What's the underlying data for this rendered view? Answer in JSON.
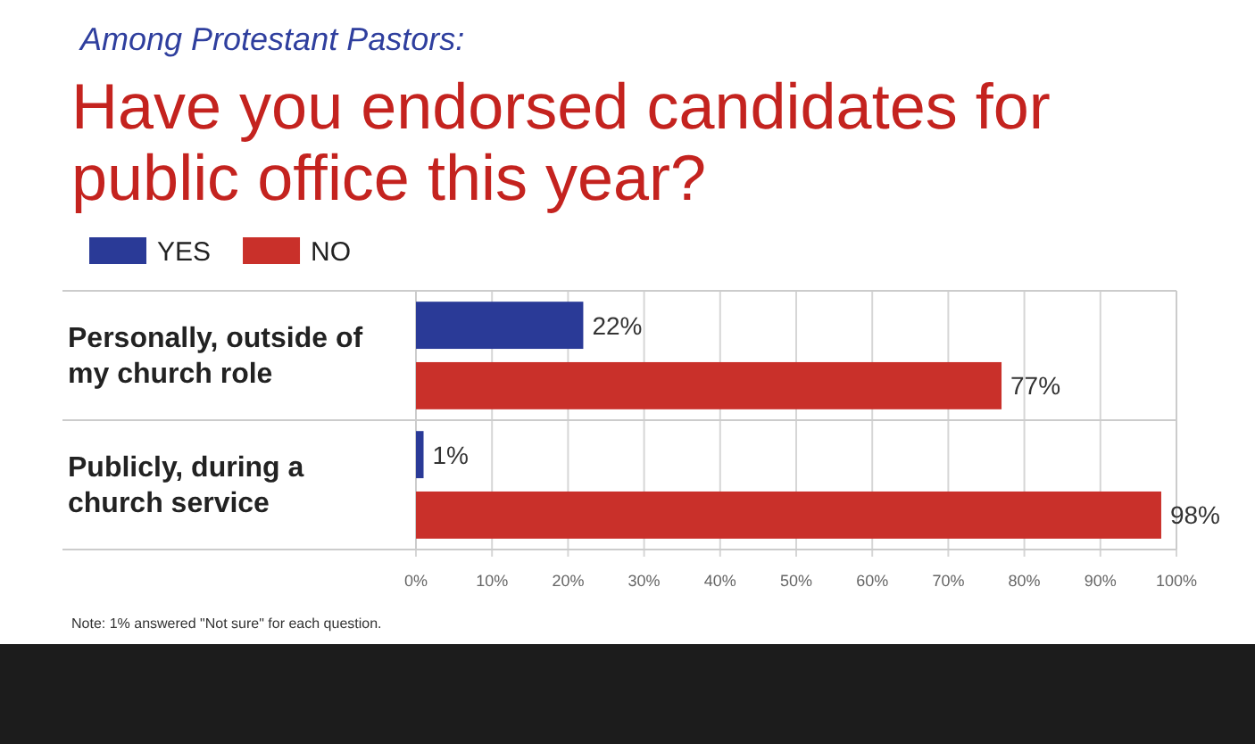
{
  "chart_data": {
    "type": "bar",
    "orientation": "horizontal",
    "subtitle": "Among Protestant Pastors:",
    "title": "Have you endorsed candidates for public office this year?",
    "categories": [
      "Personally, outside of my church role",
      "Publicly, during a church service"
    ],
    "series": [
      {
        "name": "YES",
        "color": "#2a3a97",
        "values": [
          22,
          1
        ],
        "value_labels": [
          "22%",
          "1%"
        ]
      },
      {
        "name": "NO",
        "color": "#c9302a",
        "values": [
          77,
          98
        ],
        "value_labels": [
          "77%",
          "98%"
        ]
      }
    ],
    "xlim": [
      0,
      100
    ],
    "xticks": [
      {
        "value": 0,
        "label": "0%"
      },
      {
        "value": 10,
        "label": "10%"
      },
      {
        "value": 20,
        "label": "20%"
      },
      {
        "value": 30,
        "label": "30%"
      },
      {
        "value": 40,
        "label": "40%"
      },
      {
        "value": 50,
        "label": "50%"
      },
      {
        "value": 60,
        "label": "60%"
      },
      {
        "value": 70,
        "label": "70%"
      },
      {
        "value": 80,
        "label": "80%"
      },
      {
        "value": 90,
        "label": "90%"
      },
      {
        "value": 100,
        "label": "100%"
      }
    ],
    "grid": "x",
    "legend": "top left",
    "annotations": [
      "Note: 1% answered \"Not sure\" for each question."
    ]
  }
}
